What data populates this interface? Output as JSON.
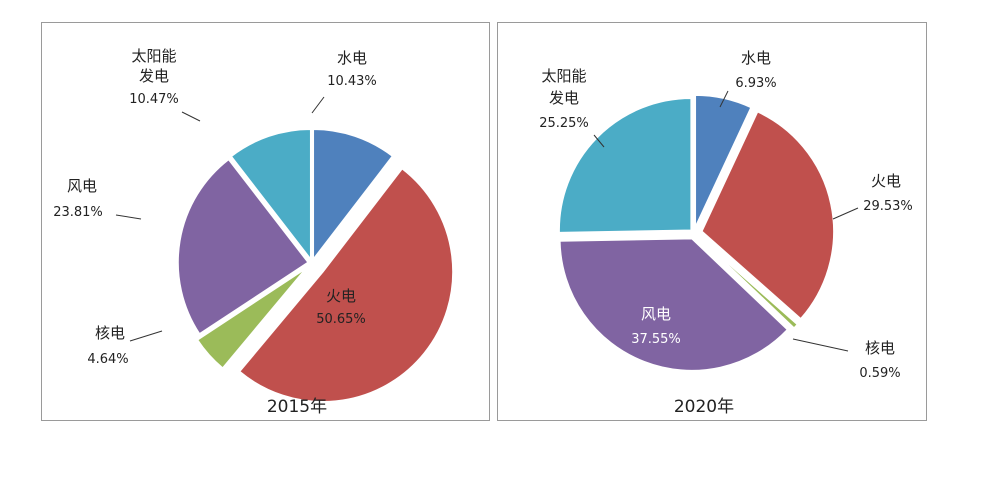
{
  "chart_data": [
    {
      "type": "pie",
      "title": "2015年",
      "slices": [
        {
          "name": "水电",
          "value": 10.43,
          "label": "10.43%",
          "color": "#4F81BD"
        },
        {
          "name": "火电",
          "value": 50.65,
          "label": "50.65%",
          "color": "#C0504D"
        },
        {
          "name": "核电",
          "value": 4.64,
          "label": "4.64%",
          "color": "#9BBB59"
        },
        {
          "name": "风电",
          "value": 23.81,
          "label": "23.81%",
          "color": "#8064A2"
        },
        {
          "name": "太阳能发电",
          "value": 10.47,
          "label": "10.47%",
          "color": "#4BACC6"
        }
      ]
    },
    {
      "type": "pie",
      "title": "2020年",
      "slices": [
        {
          "name": "水电",
          "value": 6.93,
          "label": "6.93%",
          "color": "#4F81BD"
        },
        {
          "name": "火电",
          "value": 29.53,
          "label": "29.53%",
          "color": "#C0504D"
        },
        {
          "name": "核电",
          "value": 0.59,
          "label": "0.59%",
          "color": "#9BBB59"
        },
        {
          "name": "风电",
          "value": 37.55,
          "label": "37.55%",
          "color": "#8064A2"
        },
        {
          "name": "太阳能发电",
          "value": 25.25,
          "label": "25.25%",
          "color": "#4BACC6"
        }
      ]
    }
  ],
  "labels": {
    "solar_line1": "太阳能",
    "solar_line2": "发电"
  }
}
